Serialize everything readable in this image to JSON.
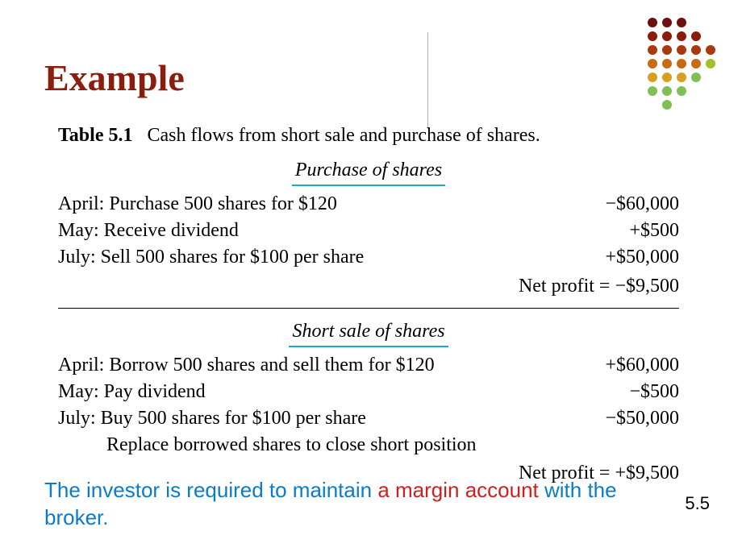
{
  "title": "Example",
  "caption_label": "Table 5.1",
  "caption_text": "Cash flows from short sale and purchase of shares.",
  "section1_title": "Purchase of shares",
  "section1": {
    "rows": [
      {
        "desc": "April: Purchase 500 shares for $120",
        "amt": "−$60,000"
      },
      {
        "desc": "May: Receive dividend",
        "amt": "+$500"
      },
      {
        "desc": "July: Sell 500 shares for $100 per share",
        "amt": "+$50,000"
      }
    ],
    "net_label": "Net profit =",
    "net_value": "−$9,500"
  },
  "section2_title": "Short sale of shares",
  "section2": {
    "rows": [
      {
        "desc": "April: Borrow 500 shares and sell them for $120",
        "amt": "+$60,000"
      },
      {
        "desc": "May: Pay dividend",
        "amt": "−$500"
      },
      {
        "desc": "July: Buy 500 shares for $100 per share",
        "amt": "−$50,000"
      },
      {
        "desc": "Replace borrowed shares to close short position",
        "amt": ""
      }
    ],
    "net_label": "Net profit =",
    "net_value": "+$9,500"
  },
  "footer": {
    "blue1": "The investor is required to maintain ",
    "red": "a margin account",
    "blue2": " with the broker."
  },
  "page_number": "5.5",
  "styling": {
    "title_color": "#8a1d0d",
    "underline_color": "#1aa8c9",
    "note_blue": "#0a7bcc",
    "note_red": "#d11f1f",
    "font_body": "Times New Roman",
    "font_note": "Arial",
    "title_fontsize_pt": 34,
    "body_fontsize_pt": 18,
    "note_fontsize_pt": 20
  },
  "dot_grid": {
    "cols": 5,
    "rows": [
      [
        "#6e1010",
        "#6e1010",
        "#6e1010",
        "",
        ""
      ],
      [
        "#8a1d0d",
        "#8a1d0d",
        "#8a1d0d",
        "#8a1d0d",
        ""
      ],
      [
        "#a83a10",
        "#a83a10",
        "#a83a10",
        "#a83a10",
        "#a83a10"
      ],
      [
        "#c76a10",
        "#c76a10",
        "#c76a10",
        "#c76a10",
        "#a2c028"
      ],
      [
        "#d8a020",
        "#d8a020",
        "#d8a020",
        "#7fbf55",
        ""
      ],
      [
        "#7fbf55",
        "#7fbf55",
        "#7fbf55",
        "",
        ""
      ],
      [
        "",
        "#7fbf55",
        "",
        "",
        ""
      ]
    ]
  }
}
